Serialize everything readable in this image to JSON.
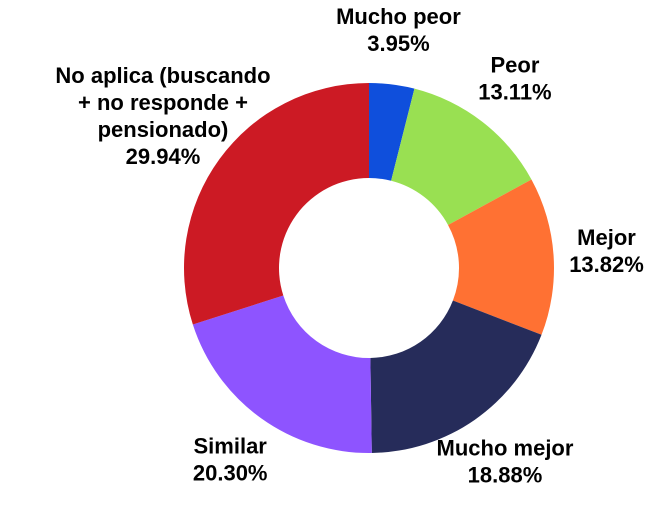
{
  "chart_data": {
    "type": "donut",
    "categories": [
      "Mucho peor",
      "Peor",
      "Mejor",
      "Mucho mejor",
      "Similar",
      "No aplica (buscando + no responde + pensionado)"
    ],
    "values": [
      3.95,
      13.11,
      13.82,
      18.88,
      20.3,
      29.94
    ],
    "value_labels": [
      "3.95%",
      "13.11%",
      "13.82%",
      "18.88%",
      "20.30%",
      "29.94%"
    ],
    "colors": [
      "#0f4fdc",
      "#99e052",
      "#ff7133",
      "#262c5a",
      "#8e54ff",
      "#cc1a24"
    ]
  }
}
